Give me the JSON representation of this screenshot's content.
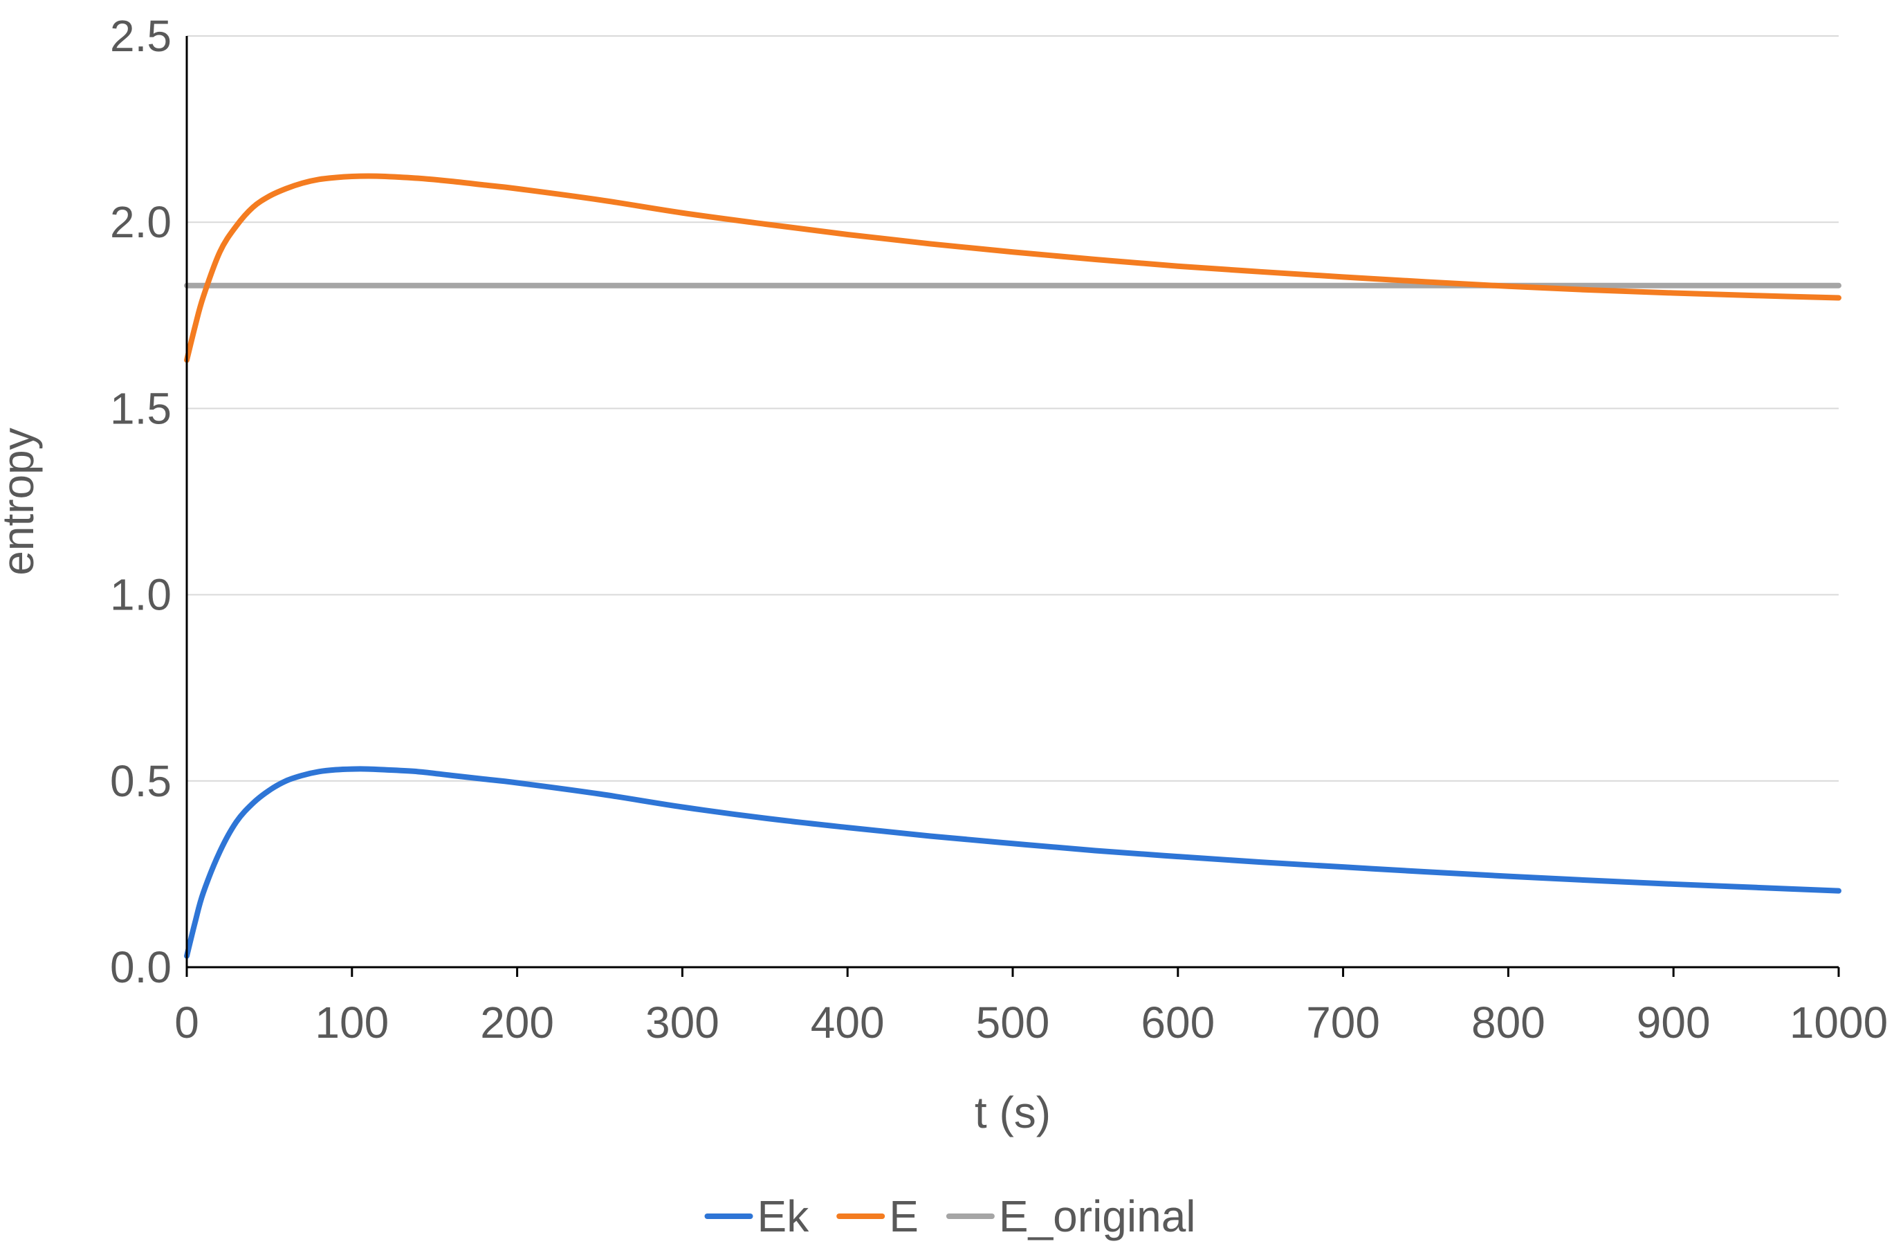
{
  "chart_data": {
    "type": "line",
    "title": "",
    "xlabel": "t (s)",
    "ylabel": "entropy",
    "xlim": [
      0,
      1000
    ],
    "ylim": [
      0,
      2.5
    ],
    "x_ticks": [
      "0",
      "100",
      "200",
      "300",
      "400",
      "500",
      "600",
      "700",
      "800",
      "900",
      "1000"
    ],
    "y_ticks": [
      "0.0",
      "0.5",
      "1.0",
      "1.5",
      "2.0",
      "2.5"
    ],
    "grid": "horizontal",
    "legend_position": "bottom",
    "x": [
      0,
      5,
      10,
      20,
      30,
      40,
      50,
      60,
      70,
      80,
      90,
      100,
      110,
      120,
      140,
      160,
      180,
      200,
      250,
      300,
      350,
      400,
      450,
      500,
      550,
      600,
      650,
      700,
      750,
      800,
      850,
      900,
      950,
      1000
    ],
    "series": [
      {
        "name": "Ek",
        "color": "#2e75d6",
        "values": [
          0.03,
          0.12,
          0.2,
          0.31,
          0.39,
          0.44,
          0.475,
          0.5,
          0.515,
          0.525,
          0.53,
          0.532,
          0.532,
          0.53,
          0.525,
          0.515,
          0.505,
          0.495,
          0.465,
          0.43,
          0.4,
          0.375,
          0.352,
          0.332,
          0.313,
          0.297,
          0.282,
          0.269,
          0.256,
          0.244,
          0.233,
          0.223,
          0.214,
          0.205
        ]
      },
      {
        "name": "E",
        "color": "#f47c20",
        "values": [
          1.63,
          1.72,
          1.8,
          1.92,
          1.99,
          2.04,
          2.07,
          2.09,
          2.105,
          2.115,
          2.12,
          2.123,
          2.124,
          2.123,
          2.118,
          2.11,
          2.1,
          2.09,
          2.06,
          2.025,
          1.995,
          1.967,
          1.942,
          1.92,
          1.9,
          1.882,
          1.867,
          1.853,
          1.84,
          1.828,
          1.818,
          1.81,
          1.803,
          1.797
        ]
      },
      {
        "name": "E_original",
        "color": "#a5a5a5",
        "values": [
          1.83,
          1.83,
          1.83,
          1.83,
          1.83,
          1.83,
          1.83,
          1.83,
          1.83,
          1.83,
          1.83,
          1.83,
          1.83,
          1.83,
          1.83,
          1.83,
          1.83,
          1.83,
          1.83,
          1.83,
          1.83,
          1.83,
          1.83,
          1.83,
          1.83,
          1.83,
          1.83,
          1.83,
          1.83,
          1.83,
          1.83,
          1.83,
          1.83,
          1.83
        ]
      }
    ]
  }
}
